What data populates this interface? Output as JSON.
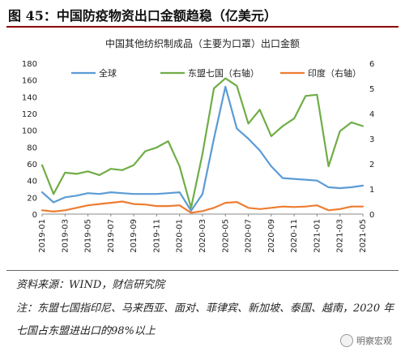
{
  "figure_title": "图 45：中国防疫物资出口金额趋稳（亿美元）",
  "source": "资料来源：WIND，财信研究院",
  "note": "注：东盟七国指印尼、马来西亚、面对、菲律宾、新加坡、泰国、越南，2020 年七国占东盟进出口的98%以上",
  "watermark": "明察宏观",
  "chart_data": {
    "type": "line",
    "title": "中国其他纺织制成品（主要为口罩）出口金额",
    "categories": [
      "2019-01",
      "2019-02",
      "2019-03",
      "2019-04",
      "2019-05",
      "2019-06",
      "2019-07",
      "2019-08",
      "2019-09",
      "2019-10",
      "2019-11",
      "2019-12",
      "2020-01",
      "2020-02",
      "2020-03",
      "2020-04",
      "2020-05",
      "2020-06",
      "2020-07",
      "2020-08",
      "2020-09",
      "2020-10",
      "2020-11",
      "2020-12",
      "2021-01",
      "2021-02",
      "2021-03",
      "2021-04",
      "2021-05"
    ],
    "tick_labels": [
      "2019-01",
      "2019-03",
      "2019-05",
      "2019-07",
      "2019-09",
      "2019-11",
      "2020-01",
      "2020-03",
      "2020-05",
      "2020-07",
      "2020-09",
      "2020-11",
      "2021-01",
      "2021-03",
      "2021-05"
    ],
    "ylim_left": [
      0,
      180
    ],
    "yticks_left": [
      0,
      20,
      40,
      60,
      80,
      100,
      120,
      140,
      160,
      180
    ],
    "ylim_right": [
      0,
      6
    ],
    "yticks_right": [
      0,
      1,
      2,
      3,
      4,
      5,
      6
    ],
    "legend_placement": "top",
    "series": [
      {
        "name": "全球",
        "axis": "left",
        "color": "#5b9bd5",
        "values": [
          26,
          14,
          20,
          22,
          25,
          24,
          26,
          25,
          24,
          24,
          24,
          25,
          26,
          4,
          24,
          90,
          152,
          102,
          90,
          76,
          57,
          43,
          42,
          41,
          40,
          32,
          31,
          32,
          34
        ]
      },
      {
        "name": "东盟七国（右轴）",
        "axis": "right",
        "color": "#70ad47",
        "values": [
          1.95,
          0.8,
          1.65,
          1.6,
          1.7,
          1.55,
          1.8,
          1.75,
          1.95,
          2.5,
          2.65,
          2.9,
          1.9,
          0.25,
          2.4,
          5.0,
          5.4,
          5.1,
          3.6,
          4.15,
          3.1,
          3.5,
          3.8,
          4.7,
          4.75,
          1.9,
          3.3,
          3.65,
          3.5
        ]
      },
      {
        "name": "印度（右轴）",
        "axis": "right",
        "color": "#ed7d31",
        "values": [
          0.15,
          0.1,
          0.15,
          0.25,
          0.35,
          0.4,
          0.45,
          0.5,
          0.4,
          0.38,
          0.32,
          0.32,
          0.35,
          0.05,
          0.12,
          0.25,
          0.45,
          0.48,
          0.25,
          0.2,
          0.25,
          0.3,
          0.28,
          0.3,
          0.35,
          0.15,
          0.2,
          0.3,
          0.3
        ]
      }
    ]
  }
}
